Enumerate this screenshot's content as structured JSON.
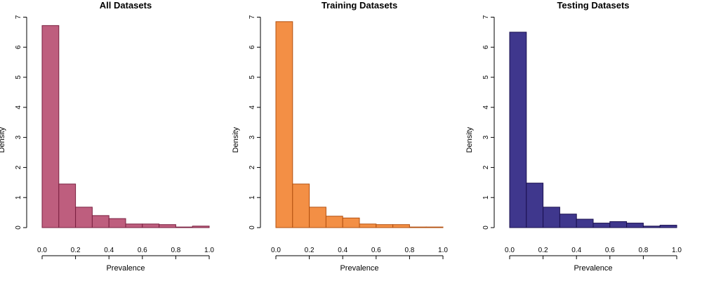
{
  "chart_data": [
    {
      "type": "bar",
      "title": "All Datasets",
      "xlabel": "Prevalence",
      "ylabel": "Density",
      "xlim": [
        0,
        1
      ],
      "ylim": [
        0,
        7
      ],
      "x_ticks": [
        "0.0",
        "0.2",
        "0.4",
        "0.6",
        "0.8",
        "1.0"
      ],
      "y_ticks": [
        "0",
        "1",
        "2",
        "3",
        "4",
        "5",
        "6",
        "7"
      ],
      "bin_edges": [
        0,
        0.1,
        0.2,
        0.3,
        0.4,
        0.5,
        0.6,
        0.7,
        0.8,
        0.9,
        1.0
      ],
      "values": [
        6.72,
        1.45,
        0.68,
        0.4,
        0.3,
        0.12,
        0.12,
        0.1,
        0.02,
        0.05
      ],
      "fill_color": "#be5e7e",
      "border_color": "#7a2040",
      "grid": false
    },
    {
      "type": "bar",
      "title": "Training Datasets",
      "xlabel": "Prevalence",
      "ylabel": "Density",
      "xlim": [
        0,
        1
      ],
      "ylim": [
        0,
        7
      ],
      "x_ticks": [
        "0.0",
        "0.2",
        "0.4",
        "0.6",
        "0.8",
        "1.0"
      ],
      "y_ticks": [
        "0",
        "1",
        "2",
        "3",
        "4",
        "5",
        "6",
        "7"
      ],
      "bin_edges": [
        0,
        0.1,
        0.2,
        0.3,
        0.4,
        0.5,
        0.6,
        0.7,
        0.8,
        0.9,
        1.0
      ],
      "values": [
        6.85,
        1.45,
        0.68,
        0.38,
        0.32,
        0.12,
        0.1,
        0.1,
        0.02,
        0.02
      ],
      "fill_color": "#f38f45",
      "border_color": "#b35010",
      "grid": false
    },
    {
      "type": "bar",
      "title": "Testing Datasets",
      "xlabel": "Prevalence",
      "ylabel": "Density",
      "xlim": [
        0,
        1
      ],
      "ylim": [
        0,
        7
      ],
      "x_ticks": [
        "0.0",
        "0.2",
        "0.4",
        "0.6",
        "0.8",
        "1.0"
      ],
      "y_ticks": [
        "0",
        "1",
        "2",
        "3",
        "4",
        "5",
        "6",
        "7"
      ],
      "bin_edges": [
        0,
        0.1,
        0.2,
        0.3,
        0.4,
        0.5,
        0.6,
        0.7,
        0.8,
        0.9,
        1.0
      ],
      "values": [
        6.5,
        1.48,
        0.68,
        0.45,
        0.28,
        0.15,
        0.2,
        0.15,
        0.05,
        0.08
      ],
      "fill_color": "#3f378d",
      "border_color": "#1a1050",
      "grid": false
    }
  ]
}
